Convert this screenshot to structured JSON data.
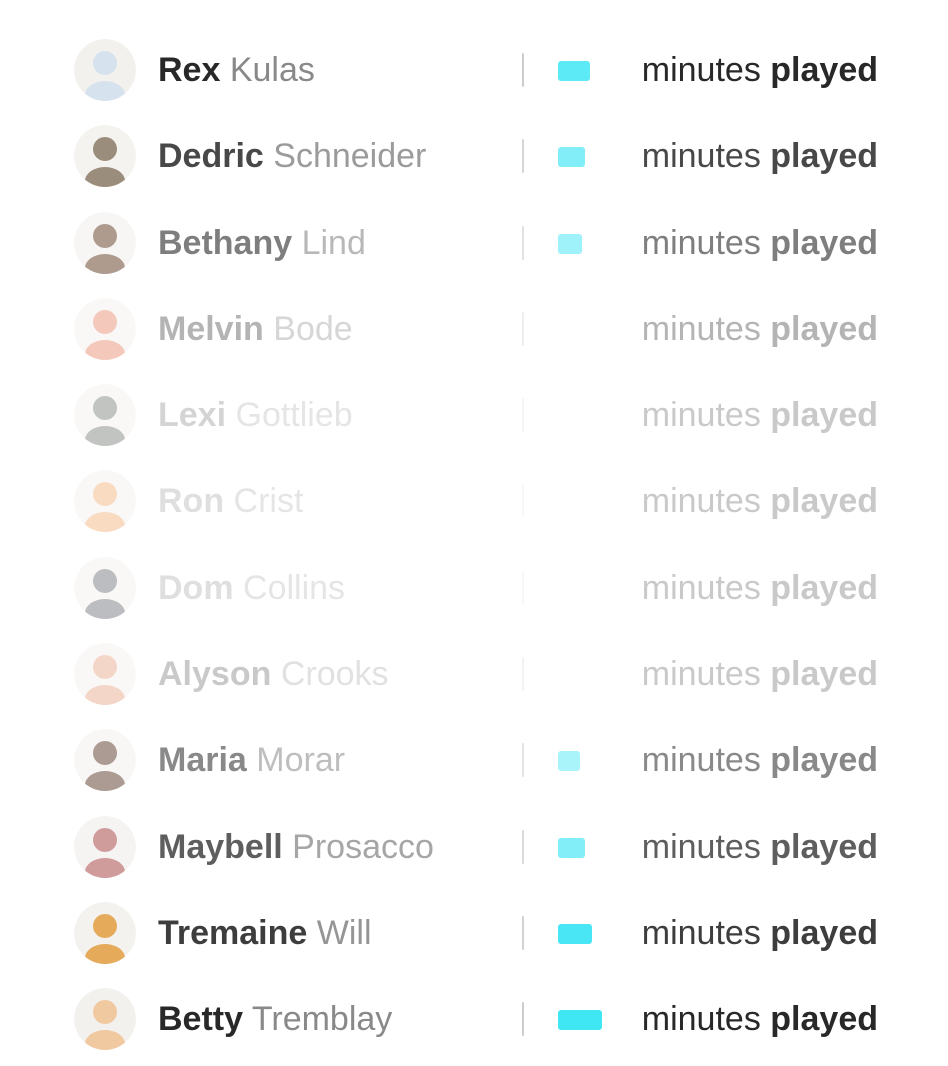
{
  "players": [
    {
      "first": "Rex",
      "last": "Kulas",
      "minutes_label": "minutes",
      "played_label": "played",
      "opacity": 1.0,
      "bar_level": 0.5,
      "avatar_color": "#d6e2ee"
    },
    {
      "first": "Dedric",
      "last": "Schneider",
      "minutes_label": "minutes",
      "played_label": "played",
      "opacity": 0.85,
      "bar_level": 0.3,
      "avatar_color": "#8a7a66"
    },
    {
      "first": "Bethany",
      "last": "Lind",
      "minutes_label": "minutes",
      "played_label": "played",
      "opacity": 0.6,
      "bar_level": 0.15,
      "avatar_color": "#7a5a44"
    },
    {
      "first": "Melvin",
      "last": "Bode",
      "minutes_label": "minutes",
      "played_label": "played",
      "opacity": 0.35,
      "bar_level": 0.0,
      "avatar_color": "#e8896a"
    },
    {
      "first": "Lexi",
      "last": "Gottlieb",
      "minutes_label": "minutes",
      "played_label": "played",
      "opacity": 0.2,
      "bar_level": 0.0,
      "avatar_color": "#7a7e7a"
    },
    {
      "first": "Ron",
      "last": "Crist",
      "minutes_label": "minutes",
      "played_label": "played",
      "opacity": 0.15,
      "bar_level": 0.0,
      "avatar_color": "#f2b07a"
    },
    {
      "first": "Dom",
      "last": "Collins",
      "minutes_label": "minutes",
      "played_label": "played",
      "opacity": 0.15,
      "bar_level": 0.0,
      "avatar_color": "#6b6f74"
    },
    {
      "first": "Alyson",
      "last": "Crooks",
      "minutes_label": "minutes",
      "played_label": "played",
      "opacity": 0.25,
      "bar_level": 0.0,
      "avatar_color": "#e8a58a"
    },
    {
      "first": "Maria",
      "last": "Morar",
      "minutes_label": "minutes",
      "played_label": "played",
      "opacity": 0.55,
      "bar_level": 0.1,
      "avatar_color": "#6a4a3a"
    },
    {
      "first": "Maybell",
      "last": "Prosacco",
      "minutes_label": "minutes",
      "played_label": "played",
      "opacity": 0.75,
      "bar_level": 0.3,
      "avatar_color": "#c07a7a"
    },
    {
      "first": "Tremaine",
      "last": "Will",
      "minutes_label": "minutes",
      "played_label": "played",
      "opacity": 0.9,
      "bar_level": 0.6,
      "avatar_color": "#e3a24a"
    },
    {
      "first": "Betty",
      "last": "Tremblay",
      "minutes_label": "minutes",
      "played_label": "played",
      "opacity": 1.0,
      "bar_level": 1.0,
      "avatar_color": "#f0c9a0"
    }
  ]
}
